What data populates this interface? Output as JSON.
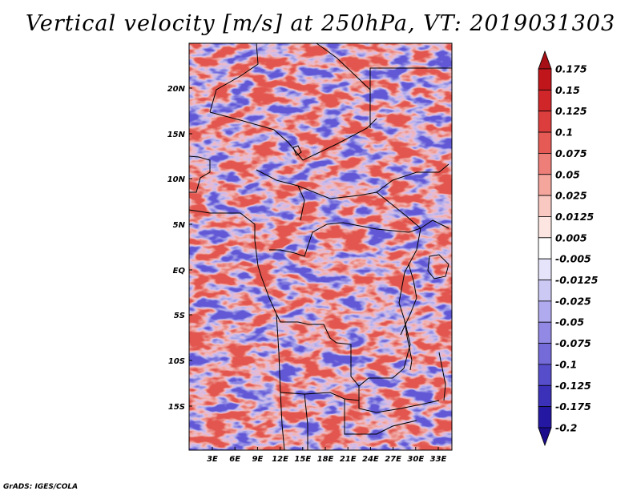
{
  "title": "Vertical velocity [m/s] at 250hPa, VT: 2019031303",
  "credit": "GrADS: IGES/COLA",
  "lat_labels": [
    "20N",
    "15N",
    "10N",
    "5N",
    "EQ",
    "5S",
    "10S",
    "15S"
  ],
  "lon_labels": [
    "3E",
    "6E",
    "9E",
    "12E",
    "15E",
    "18E",
    "21E",
    "24E",
    "27E",
    "30E",
    "33E"
  ],
  "colorbar": {
    "labels": [
      "0.175",
      "0.15",
      "0.125",
      "0.1",
      "0.075",
      "0.05",
      "0.025",
      "0.0125",
      "0.005",
      "-0.005",
      "-0.0125",
      "-0.025",
      "-0.05",
      "-0.075",
      "-0.1",
      "-0.125",
      "-0.175",
      "-0.2"
    ],
    "colors": [
      "#a50f15",
      "#c0161b",
      "#d0262a",
      "#dc3d3d",
      "#e55a55",
      "#ee7f78",
      "#f4a59c",
      "#f9c8c0",
      "#fde6e2",
      "#ffffff",
      "#e6e4fb",
      "#cdc9f5",
      "#b0aaee",
      "#9289e4",
      "#746bd9",
      "#564dcb",
      "#3b30b8",
      "#2418a2",
      "#1a0c8a"
    ]
  },
  "field_colors": {
    "positive": "#e2574f",
    "negative": "#6259d6",
    "neutral": "#ffffff",
    "border": "#000000"
  }
}
